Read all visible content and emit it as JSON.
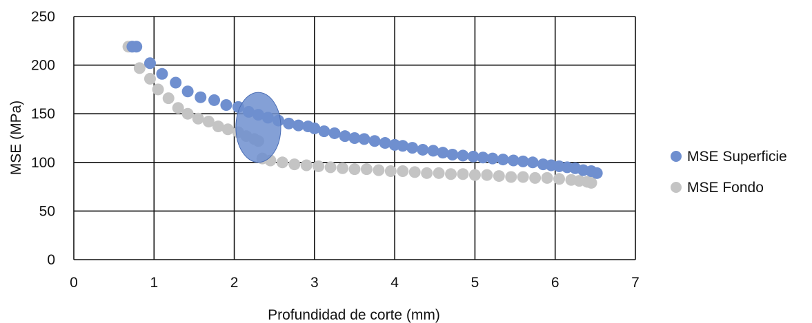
{
  "chart_data": {
    "type": "scatter",
    "title": "",
    "xlabel": "Profundidad de corte (mm)",
    "ylabel": "MSE (MPa)",
    "xlim": [
      0,
      7
    ],
    "ylim": [
      0,
      250
    ],
    "xticks": [
      0,
      1,
      2,
      3,
      4,
      5,
      6,
      7
    ],
    "yticks": [
      0,
      50,
      100,
      150,
      200,
      250
    ],
    "grid": true,
    "legend_position": "right",
    "series": [
      {
        "name": "MSE Superficie",
        "color": "#6f8fcf",
        "points": [
          [
            0.73,
            219
          ],
          [
            0.78,
            219
          ],
          [
            0.95,
            202
          ],
          [
            1.1,
            191
          ],
          [
            1.27,
            182
          ],
          [
            1.42,
            173
          ],
          [
            1.58,
            167
          ],
          [
            1.75,
            164
          ],
          [
            1.9,
            159
          ],
          [
            2.05,
            157
          ],
          [
            2.18,
            152
          ],
          [
            2.3,
            149
          ],
          [
            2.42,
            146
          ],
          [
            2.55,
            143
          ],
          [
            2.68,
            140
          ],
          [
            2.8,
            138
          ],
          [
            2.92,
            137
          ],
          [
            3.0,
            135
          ],
          [
            3.12,
            132
          ],
          [
            3.25,
            130
          ],
          [
            3.38,
            127
          ],
          [
            3.5,
            125
          ],
          [
            3.62,
            124
          ],
          [
            3.75,
            122
          ],
          [
            3.88,
            120
          ],
          [
            4.0,
            118
          ],
          [
            4.1,
            117
          ],
          [
            4.22,
            115
          ],
          [
            4.35,
            113
          ],
          [
            4.48,
            112
          ],
          [
            4.6,
            110
          ],
          [
            4.72,
            108
          ],
          [
            4.85,
            107
          ],
          [
            4.98,
            106
          ],
          [
            5.1,
            105
          ],
          [
            5.22,
            104
          ],
          [
            5.35,
            103
          ],
          [
            5.48,
            102
          ],
          [
            5.6,
            101
          ],
          [
            5.72,
            100
          ],
          [
            5.85,
            98
          ],
          [
            5.95,
            97
          ],
          [
            6.05,
            96
          ],
          [
            6.15,
            95
          ],
          [
            6.25,
            94
          ],
          [
            6.35,
            92
          ],
          [
            6.45,
            91
          ],
          [
            6.52,
            89
          ]
        ]
      },
      {
        "name": "MSE Fondo",
        "color": "#c4c4c4",
        "points": [
          [
            0.68,
            219
          ],
          [
            0.72,
            219
          ],
          [
            0.82,
            197
          ],
          [
            0.95,
            186
          ],
          [
            1.05,
            175
          ],
          [
            1.18,
            166
          ],
          [
            1.3,
            156
          ],
          [
            1.42,
            150
          ],
          [
            1.55,
            145
          ],
          [
            1.68,
            142
          ],
          [
            1.8,
            137
          ],
          [
            1.92,
            134
          ],
          [
            2.05,
            131
          ],
          [
            2.15,
            127
          ],
          [
            2.25,
            124
          ],
          [
            2.3,
            122
          ],
          [
            2.35,
            104
          ],
          [
            2.45,
            102
          ],
          [
            2.6,
            100
          ],
          [
            2.75,
            98
          ],
          [
            2.9,
            97
          ],
          [
            3.05,
            96
          ],
          [
            3.2,
            95
          ],
          [
            3.35,
            94
          ],
          [
            3.5,
            93
          ],
          [
            3.65,
            93
          ],
          [
            3.8,
            92
          ],
          [
            3.95,
            91
          ],
          [
            4.1,
            91
          ],
          [
            4.25,
            90
          ],
          [
            4.4,
            89
          ],
          [
            4.55,
            89
          ],
          [
            4.7,
            88
          ],
          [
            4.85,
            88
          ],
          [
            5.0,
            87
          ],
          [
            5.15,
            87
          ],
          [
            5.3,
            86
          ],
          [
            5.45,
            85
          ],
          [
            5.6,
            85
          ],
          [
            5.75,
            84
          ],
          [
            5.9,
            84
          ],
          [
            6.05,
            83
          ],
          [
            6.2,
            82
          ],
          [
            6.3,
            81
          ],
          [
            6.4,
            80
          ],
          [
            6.45,
            79
          ]
        ]
      }
    ],
    "annotation": {
      "shape": "ellipse",
      "center": [
        2.3,
        136
      ],
      "x_radius": 0.28,
      "y_radius": 36,
      "color": "#6f8fcf"
    }
  }
}
